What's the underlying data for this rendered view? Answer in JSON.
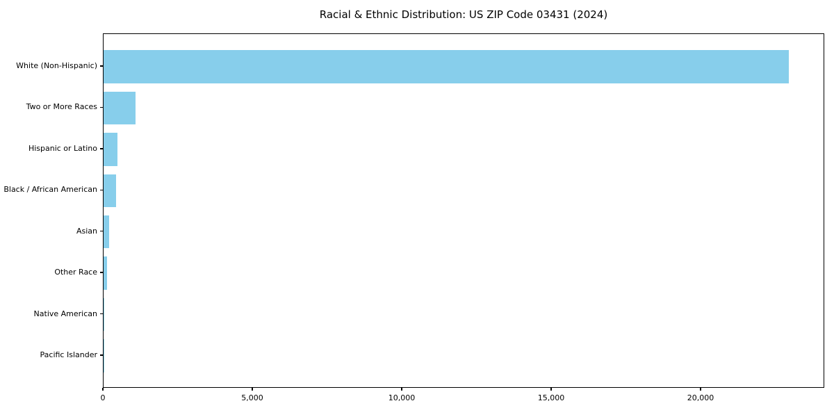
{
  "chart_data": {
    "type": "bar",
    "orientation": "horizontal",
    "title": "Racial & Ethnic Distribution: US ZIP Code 03431 (2024)",
    "categories": [
      "White (Non-Hispanic)",
      "Two or More Races",
      "Hispanic or Latino",
      "Black / African American",
      "Asian",
      "Other Race",
      "Native American",
      "Pacific Islander"
    ],
    "values": [
      22980,
      1070,
      465,
      420,
      185,
      125,
      15,
      5
    ],
    "xlabel": "",
    "ylabel": "",
    "xlim": [
      0,
      24140
    ],
    "xticks": [
      0,
      5000,
      10000,
      15000,
      20000
    ],
    "xtick_labels": [
      "0",
      "5,000",
      "10,000",
      "15,000",
      "20,000"
    ],
    "bar_color": "#87CEEB",
    "grid": false,
    "legend_position": "none",
    "background_color": "#ffffff"
  }
}
